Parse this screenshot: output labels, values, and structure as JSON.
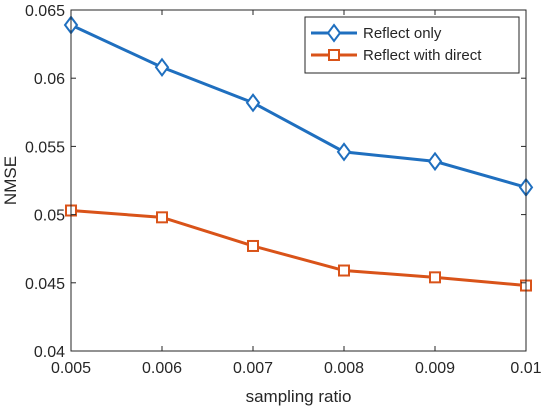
{
  "chart_data": {
    "type": "line",
    "title": "",
    "xlabel": "sampling ratio",
    "ylabel": "NMSE",
    "xlim": [
      0.005,
      0.01
    ],
    "ylim": [
      0.04,
      0.065
    ],
    "x": [
      0.005,
      0.006,
      0.007,
      0.008,
      0.009,
      0.01
    ],
    "xticks": [
      "0.005",
      "0.006",
      "0.007",
      "0.008",
      "0.009",
      "0.01"
    ],
    "yticks": [
      "0.04",
      "0.045",
      "0.05",
      "0.055",
      "0.06",
      "0.065"
    ],
    "grid": false,
    "legend_position": "top-right",
    "series": [
      {
        "name": "Reflect only",
        "values": [
          0.0639,
          0.0608,
          0.0582,
          0.0546,
          0.0539,
          0.052
        ],
        "color": "#1f6fbf",
        "marker": "diamond"
      },
      {
        "name": "Reflect with direct",
        "values": [
          0.0503,
          0.0498,
          0.0477,
          0.0459,
          0.0454,
          0.0448
        ],
        "color": "#d95319",
        "marker": "square"
      }
    ]
  }
}
